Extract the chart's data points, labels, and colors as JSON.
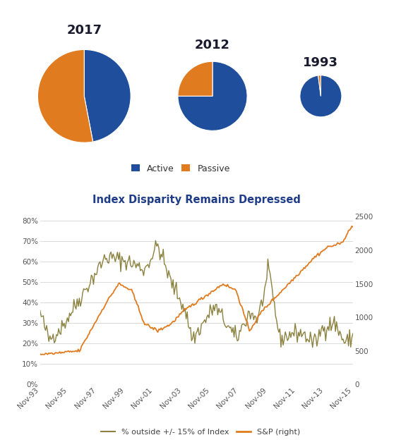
{
  "pie_2017": [
    0.47,
    0.53
  ],
  "pie_2012": [
    0.75,
    0.25
  ],
  "pie_1993": [
    0.98,
    0.02
  ],
  "pie_colors": [
    "#1f4e9c",
    "#e07b20"
  ],
  "pie_labels": [
    "Active",
    "Passive"
  ],
  "pie_years": [
    "2017",
    "2012",
    "1993"
  ],
  "chart_title": "Index Disparity Remains Depressed",
  "active_color": "#1f4e9c",
  "passive_color": "#e07b20",
  "line_olive": "#8b8240",
  "line_orange": "#e07b20",
  "x_labels": [
    "Nov-93",
    "Nov-95",
    "Nov-97",
    "Nov-99",
    "Nov-01",
    "Nov-03",
    "Nov-05",
    "Nov-07",
    "Nov-09",
    "Nov-11",
    "Nov-13",
    "Nov-15"
  ],
  "left_yticks": [
    0.0,
    0.1,
    0.2,
    0.3,
    0.4,
    0.5,
    0.6,
    0.7,
    0.8
  ],
  "left_ylabels": [
    "0%",
    "10%",
    "20%",
    "30%",
    "40%",
    "50%",
    "60%",
    "70%",
    "80%"
  ],
  "right_yticks": [
    0,
    500,
    1000,
    1500,
    2000,
    2500
  ],
  "right_ylabels": [
    "0",
    "500",
    "1000",
    "1500",
    "2000",
    "2500"
  ],
  "legend_line1": "% outside +/- 15% of Index",
  "legend_line2": "S&P (right)",
  "background_color": "#ffffff"
}
